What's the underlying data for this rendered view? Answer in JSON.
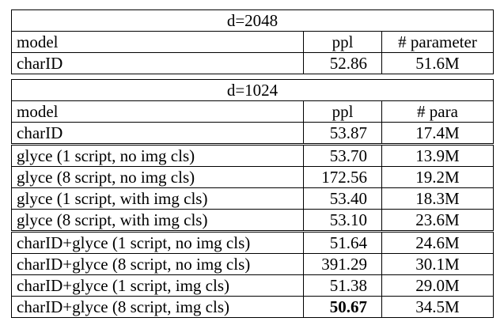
{
  "tables": [
    {
      "title": "d=2048",
      "header": [
        "model",
        "ppl",
        "# parameter"
      ],
      "groups": [
        [
          [
            "charID",
            "52.86",
            "51.6M"
          ]
        ]
      ]
    },
    {
      "title": "d=1024",
      "header": [
        "model",
        "ppl",
        "# para"
      ],
      "groups": [
        [
          [
            "charID",
            "53.87",
            "17.4M"
          ]
        ],
        [
          [
            "glyce (1 script, no img cls)",
            "53.70",
            "13.9M"
          ],
          [
            "glyce (8 script, no img cls)",
            "172.56",
            "19.2M"
          ],
          [
            "glyce (1 script, with img cls)",
            "53.40",
            "18.3M"
          ],
          [
            "glyce (8 script, with img cls)",
            "53.10",
            "23.6M"
          ]
        ],
        [
          [
            "charID+glyce (1 script, no img cls)",
            "51.64",
            "24.6M"
          ],
          [
            "charID+glyce (8 script, no img cls)",
            "391.29",
            "30.1M"
          ],
          [
            "charID+glyce (1 script, img cls)",
            "51.38",
            "29.0M"
          ],
          [
            "charID+glyce (8 script, img cls)",
            "50.67",
            "34.5M"
          ]
        ]
      ]
    }
  ]
}
